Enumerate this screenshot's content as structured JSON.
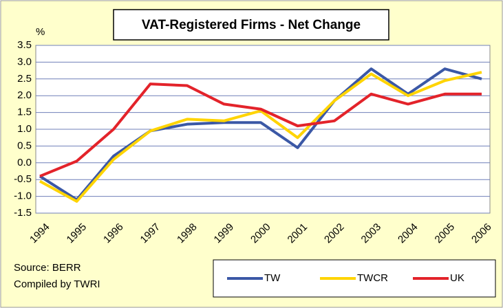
{
  "chart_data": {
    "type": "line",
    "title": "VAT-Registered Firms - Net Change",
    "ylabel": "%",
    "categories": [
      "1994",
      "1995",
      "1996",
      "1997",
      "1998",
      "1999",
      "2000",
      "2001",
      "2002",
      "2003",
      "2004",
      "2005",
      "2006"
    ],
    "series": [
      {
        "name": "TW",
        "color": "#3b58a6",
        "values": [
          -0.4,
          -1.1,
          0.2,
          0.95,
          1.15,
          1.2,
          1.2,
          0.45,
          1.85,
          2.8,
          2.05,
          2.8,
          2.5
        ]
      },
      {
        "name": "TWCR",
        "color": "#ffd400",
        "values": [
          -0.55,
          -1.15,
          0.1,
          0.95,
          1.3,
          1.25,
          1.55,
          0.75,
          1.85,
          2.65,
          2.0,
          2.45,
          2.7
        ]
      },
      {
        "name": "UK",
        "color": "#e3232a",
        "values": [
          -0.4,
          0.05,
          1.0,
          2.35,
          2.3,
          1.75,
          1.6,
          1.1,
          1.25,
          2.05,
          1.75,
          2.05,
          2.05
        ]
      }
    ],
    "ylim": [
      -1.5,
      3.5
    ],
    "yticks": [
      3.5,
      {
        "value": 3,
        "label": "3.0"
      },
      2.5,
      {
        "value": 2,
        "label": "2.0"
      },
      1.5,
      {
        "value": 1,
        "label": "1.0"
      },
      0.5,
      {
        "value": 0,
        "label": "0.0"
      },
      -0.5,
      {
        "value": -1,
        "label": "-1.0"
      },
      -1.5
    ],
    "grid": true,
    "annotations": [
      "Source: BERR",
      "Compiled by TWRI"
    ]
  }
}
